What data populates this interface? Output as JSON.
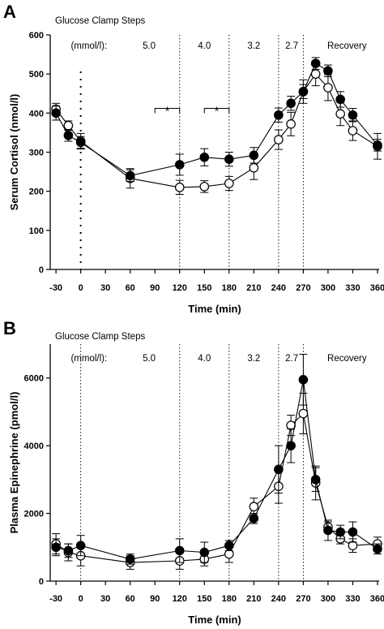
{
  "chart_data": [
    {
      "type": "line",
      "panel_label": "A",
      "ylabel": "Serum Cortisol (nmol/l)",
      "xlabel": "Time (min)",
      "xlim": [
        -37,
        362
      ],
      "ylim": [
        0,
        600
      ],
      "xticks": [
        -30,
        0,
        30,
        60,
        90,
        120,
        150,
        180,
        210,
        240,
        270,
        300,
        330,
        360
      ],
      "yticks": [
        0,
        100,
        200,
        300,
        400,
        500,
        600
      ],
      "clamp_header": "Glucose Clamp Steps",
      "steps": [
        {
          "label": "(mmol/l):",
          "x": 10
        },
        {
          "label": "5.0",
          "x": 83
        },
        {
          "label": "4.0",
          "x": 150
        },
        {
          "label": "3.2",
          "x": 210
        },
        {
          "label": "2.7",
          "x": 256
        },
        {
          "label": "Recovery",
          "x": 323
        }
      ],
      "step_lines": [
        120,
        180,
        240,
        270
      ],
      "zero_line": 0,
      "significance": [
        {
          "x1": 90,
          "x2": 120,
          "y": 412,
          "label": "*"
        },
        {
          "x1": 150,
          "x2": 180,
          "y": 412,
          "label": "*"
        }
      ],
      "series": [
        {
          "filled": true,
          "x": [
            -30,
            -15,
            0,
            60,
            120,
            150,
            180,
            210,
            240,
            255,
            270,
            285,
            300,
            315,
            330,
            360
          ],
          "y": [
            400,
            343,
            325,
            240,
            268,
            287,
            282,
            292,
            395,
            425,
            455,
            527,
            508,
            435,
            395,
            318
          ],
          "err": [
            18,
            15,
            15,
            15,
            27,
            22,
            18,
            20,
            18,
            18,
            18,
            15,
            15,
            20,
            17,
            15
          ]
        },
        {
          "filled": false,
          "x": [
            -30,
            -15,
            0,
            60,
            120,
            150,
            180,
            210,
            240,
            255,
            270,
            285,
            300,
            315,
            330,
            360
          ],
          "y": [
            410,
            368,
            328,
            233,
            210,
            212,
            220,
            260,
            332,
            372,
            455,
            500,
            465,
            398,
            355,
            315
          ],
          "err": [
            15,
            12,
            20,
            25,
            18,
            15,
            18,
            30,
            25,
            30,
            30,
            30,
            33,
            30,
            25,
            33
          ]
        }
      ]
    },
    {
      "type": "line",
      "panel_label": "B",
      "ylabel": "Plasma Epinephrine (pmol/l)",
      "xlabel": "Time (min)",
      "xlim": [
        -37,
        362
      ],
      "ylim": [
        0,
        7000
      ],
      "xticks": [
        -30,
        0,
        30,
        60,
        90,
        120,
        150,
        180,
        210,
        240,
        270,
        300,
        330,
        360
      ],
      "yticks": [
        0,
        2000,
        4000,
        6000
      ],
      "clamp_header": "Glucose Clamp Steps",
      "steps": [
        {
          "label": "(mmol/l):",
          "x": 10
        },
        {
          "label": "5.0",
          "x": 83
        },
        {
          "label": "4.0",
          "x": 150
        },
        {
          "label": "3.2",
          "x": 210
        },
        {
          "label": "2.7",
          "x": 256
        },
        {
          "label": "Recovery",
          "x": 323
        }
      ],
      "step_lines": [
        0,
        120,
        180,
        240,
        270
      ],
      "series": [
        {
          "filled": true,
          "x": [
            -30,
            -15,
            0,
            60,
            120,
            150,
            180,
            210,
            240,
            255,
            270,
            285,
            300,
            315,
            330,
            360
          ],
          "y": [
            1000,
            900,
            1050,
            650,
            900,
            850,
            1050,
            1850,
            3300,
            4000,
            5950,
            3000,
            1500,
            1450,
            1450,
            950
          ],
          "err": [
            250,
            200,
            300,
            150,
            350,
            300,
            150,
            150,
            700,
            500,
            750,
            350,
            300,
            200,
            300,
            150
          ]
        },
        {
          "filled": false,
          "x": [
            -30,
            -15,
            0,
            60,
            120,
            150,
            180,
            210,
            240,
            255,
            270,
            285,
            300,
            315,
            330,
            360
          ],
          "y": [
            1100,
            850,
            750,
            550,
            600,
            650,
            800,
            2200,
            2800,
            4600,
            4950,
            2900,
            1600,
            1250,
            1050,
            1100
          ],
          "err": [
            300,
            250,
            300,
            200,
            250,
            200,
            250,
            250,
            500,
            300,
            600,
            500,
            150,
            150,
            200,
            200
          ]
        }
      ]
    }
  ]
}
